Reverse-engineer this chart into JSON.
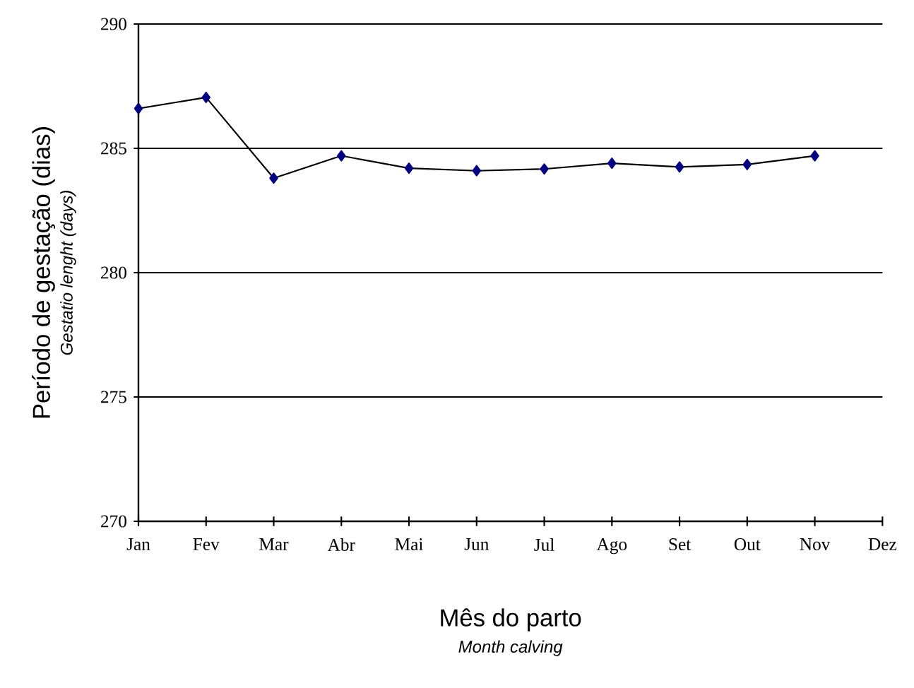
{
  "chart_data": {
    "type": "line",
    "xlabel": "Mês do parto",
    "ylabel": "Período de gestação (dias)",
    "annotations": [
      "Month calving",
      "Gestatio lenght (days)"
    ],
    "categories": [
      "Jan",
      "Fev",
      "Mar",
      "Abr",
      "Mai",
      "Jun",
      "Jul",
      "Ago",
      "Set",
      "Out",
      "Nov",
      "Dez"
    ],
    "values": [
      286.6,
      287.05,
      283.8,
      284.7,
      284.2,
      284.1,
      284.17,
      284.4,
      284.25,
      284.35,
      284.7,
      null
    ],
    "color": "#000080",
    "marker": "diamond",
    "line_style": "solid",
    "ylim": [
      270,
      290
    ],
    "yticks": [
      270,
      275,
      280,
      285,
      290
    ],
    "grid": "y"
  }
}
